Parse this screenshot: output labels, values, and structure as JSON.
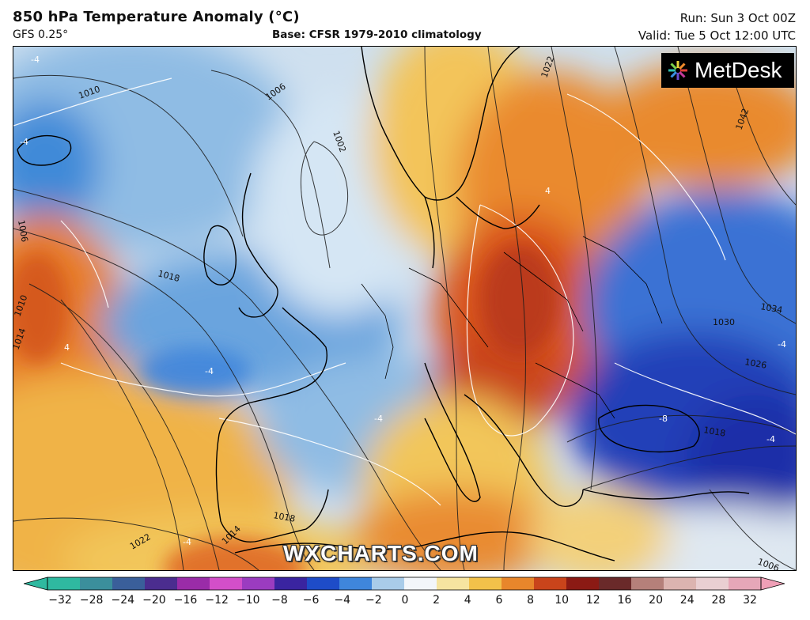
{
  "header": {
    "title": "850 hPa Temperature Anomaly (°C)",
    "model": "GFS 0.25°",
    "base": "Base: CFSR 1979-2010 climatology",
    "run": "Run: Sun 3 Oct 00Z",
    "valid": "Valid: Tue 5 Oct 12:00 UTC"
  },
  "logo": {
    "text": "MetDesk",
    "icon": "metdesk-star-icon"
  },
  "watermark": "WXCHARTS.COM",
  "colorbar": {
    "ticks": [
      "−32",
      "−28",
      "−24",
      "−20",
      "−16",
      "−12",
      "−10",
      "−8",
      "−6",
      "−4",
      "−2",
      "0",
      "2",
      "4",
      "6",
      "8",
      "10",
      "12",
      "16",
      "20",
      "24",
      "28",
      "32"
    ],
    "colors": [
      "#2fb9a0",
      "#3b8f9c",
      "#3a5f9a",
      "#4b2d8f",
      "#9a2ca8",
      "#d34fc9",
      "#9b3cc0",
      "#3a24a0",
      "#1e4cc8",
      "#3f86dc",
      "#a9cce9",
      "#f3f6fa",
      "#f6e4a0",
      "#f2c14a",
      "#e8862b",
      "#c9441b",
      "#8b1a14",
      "#6a2a2a",
      "#b5807a",
      "#dcb4b0",
      "#e9cfd2",
      "#e6a7b8"
    ]
  },
  "isobars": {
    "labels": [
      "1010",
      "1006",
      "1002",
      "1022",
      "1042",
      "1006",
      "1010",
      "1014",
      "1018",
      "1034",
      "1030",
      "1026",
      "1018",
      "1018",
      "1014",
      "1022",
      "1006"
    ],
    "anomaly_labels": [
      "-4",
      "-4",
      "-4",
      "-4",
      "4",
      "4",
      "-4",
      "-8",
      "-4",
      "-4"
    ]
  }
}
